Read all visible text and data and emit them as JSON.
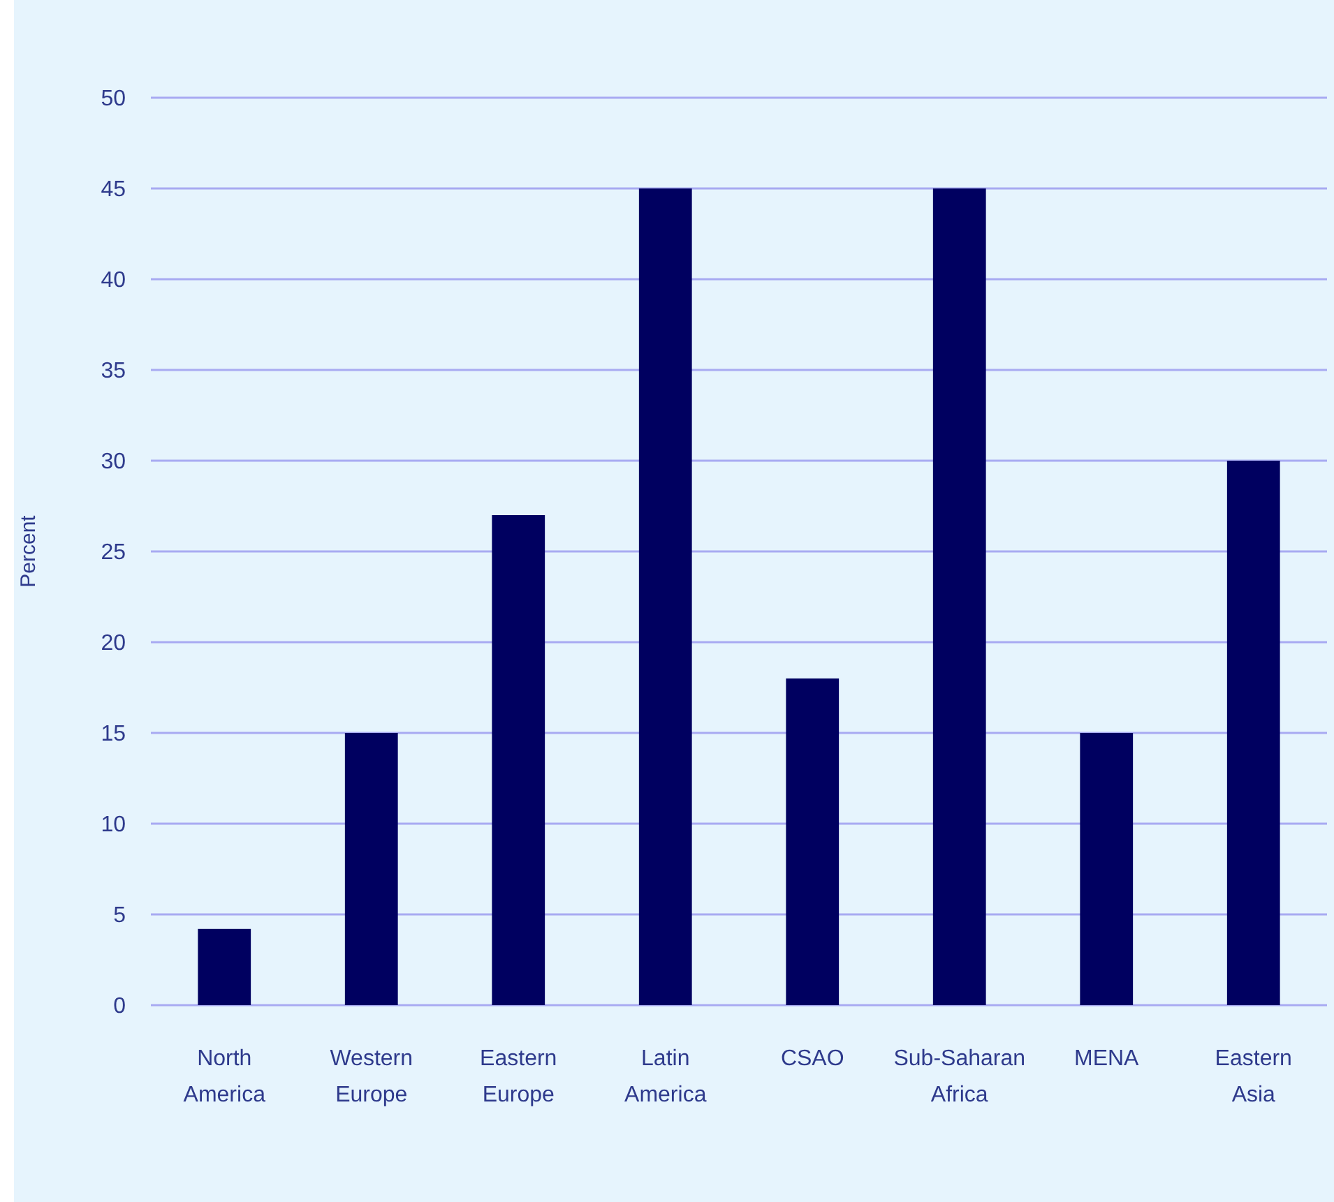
{
  "chart_data": {
    "type": "bar",
    "ylabel": "Percent",
    "categories": [
      "North\nAmerica",
      "Western\nEurope",
      "Eastern\nEurope",
      "Latin\nAmerica",
      "CSAO",
      "Sub-Saharan\nAfrica",
      "MENA",
      "Eastern\nAsia"
    ],
    "values": [
      4.2,
      15,
      27,
      45,
      18,
      45,
      15,
      30
    ],
    "color": "#000060",
    "ylim": [
      0,
      50
    ],
    "yticks": [
      0,
      5,
      10,
      15,
      20,
      25,
      30,
      35,
      40,
      45,
      50
    ],
    "grid": "y"
  }
}
